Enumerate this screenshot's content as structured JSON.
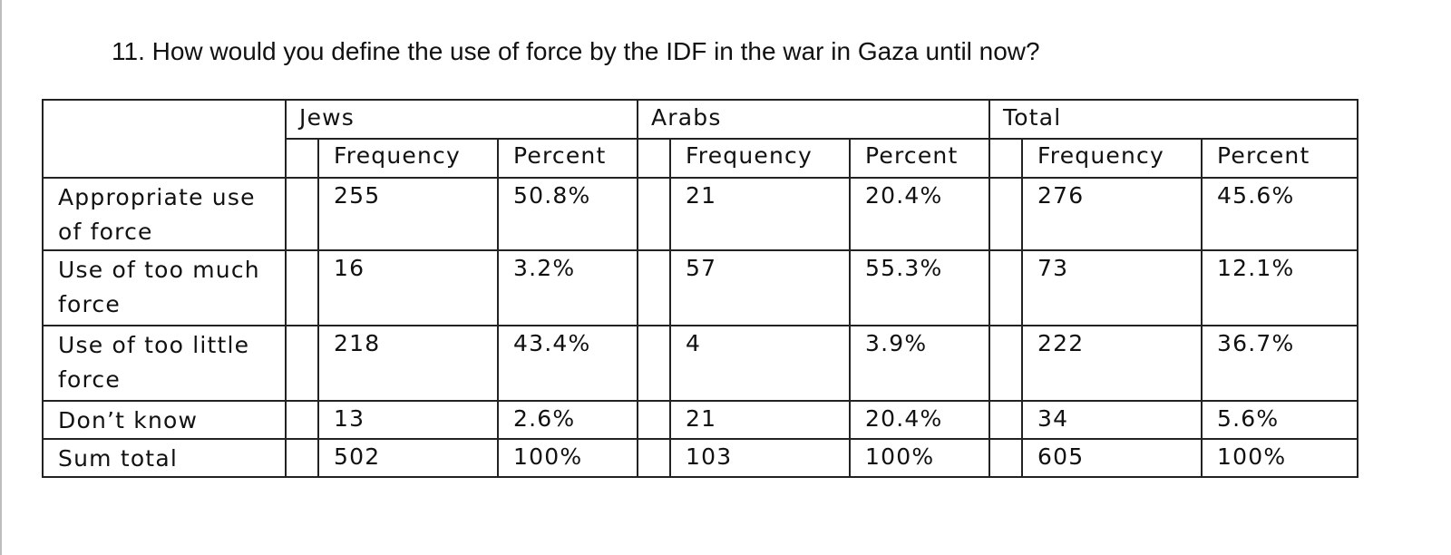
{
  "question": "11. How would you define the use of force by the IDF in the war in Gaza until now?",
  "table": {
    "groups": [
      "Jews",
      "Arabs",
      "Total"
    ],
    "subheaders": [
      "Frequency",
      "Percent"
    ],
    "rows": [
      {
        "label": "Appropriate use of force",
        "jews_frequency": "255",
        "jews_percent": "50.8%",
        "arabs_frequency": "21",
        "arabs_percent": "20.4%",
        "total_frequency": "276",
        "total_percent": "45.6%"
      },
      {
        "label": "Use of too much force",
        "jews_frequency": "16",
        "jews_percent": "3.2%",
        "arabs_frequency": "57",
        "arabs_percent": "55.3%",
        "total_frequency": "73",
        "total_percent": "12.1%"
      },
      {
        "label": "Use of too little force",
        "jews_frequency": "218",
        "jews_percent": "43.4%",
        "arabs_frequency": "4",
        "arabs_percent": "3.9%",
        "total_frequency": "222",
        "total_percent": "36.7%"
      },
      {
        "label": "Don’t know",
        "jews_frequency": "13",
        "jews_percent": "2.6%",
        "arabs_frequency": "21",
        "arabs_percent": "20.4%",
        "total_frequency": "34",
        "total_percent": "5.6%"
      },
      {
        "label": "Sum total",
        "jews_frequency": "502",
        "jews_percent": "100%",
        "arabs_frequency": "103",
        "arabs_percent": "100%",
        "total_frequency": "605",
        "total_percent": "100%"
      }
    ]
  }
}
